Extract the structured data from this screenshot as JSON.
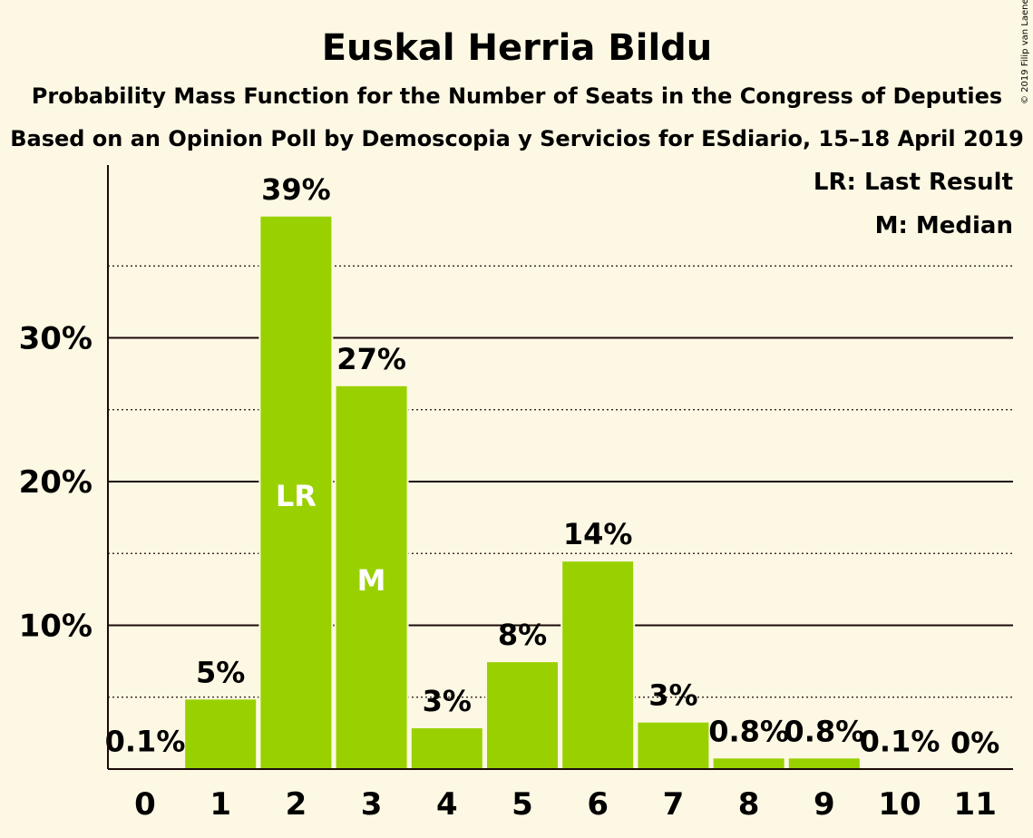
{
  "chart_data": {
    "type": "bar",
    "title": "Euskal Herria Bildu",
    "subtitle": "Probability Mass Function for the Number of Seats in the Congress of Deputies",
    "subtitle2": "Based on an Opinion Poll by Demoscopia y Servicios for ESdiario, 15–18 April 2019",
    "copyright": "© 2019 Filip van Laenen",
    "legend": [
      "LR: Last Result",
      "M: Median"
    ],
    "categories": [
      "0",
      "1",
      "2",
      "3",
      "4",
      "5",
      "6",
      "7",
      "8",
      "9",
      "10",
      "11"
    ],
    "values": [
      0.1,
      4.9,
      38.5,
      26.7,
      2.9,
      7.5,
      14.5,
      3.3,
      0.8,
      0.8,
      0.1,
      0.0
    ],
    "labels": [
      "0.1%",
      "5%",
      "39%",
      "27%",
      "3%",
      "8%",
      "14%",
      "3%",
      "0.8%",
      "0.8%",
      "0.1%",
      "0%"
    ],
    "markers": {
      "2": "LR",
      "3": "M"
    },
    "yticks": [
      10,
      20,
      30
    ],
    "ytick_labels": [
      "10%",
      "20%",
      "30%"
    ],
    "minor_gridlines": [
      5,
      15,
      25,
      35
    ],
    "ylim": [
      0,
      42
    ],
    "grid": true,
    "legend_placement": "top-right",
    "bar_color": "#99d100",
    "background_color": "#fdf8e3",
    "text_color": "#1a0a0a"
  }
}
